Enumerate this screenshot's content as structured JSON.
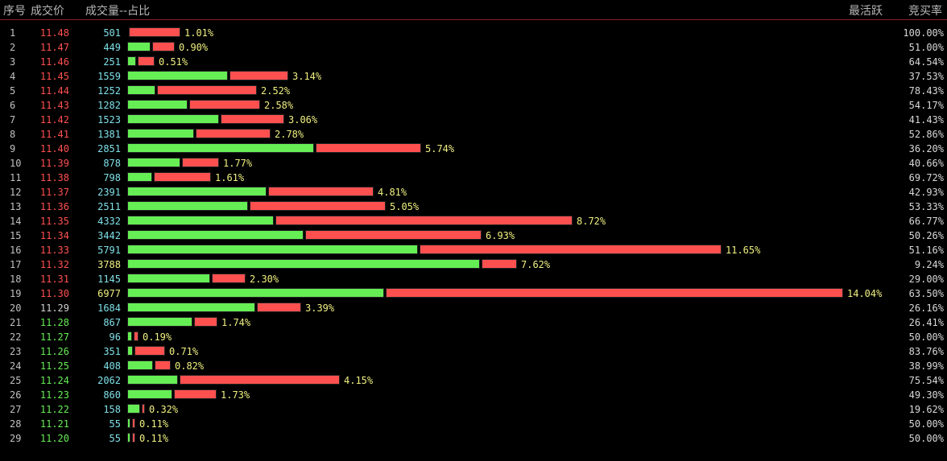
{
  "header": {
    "seq": "序号",
    "price": "成交价",
    "volume": "成交量--占比",
    "active": "最活跃",
    "rate": "竞买率"
  },
  "colors": {
    "price_up": "#ff5050",
    "price_down": "#66ee55",
    "price_flat": "#d0d0d0",
    "volume": "#7fe0e8",
    "percent": "#f0f080",
    "bar_green": "#66ee55",
    "bar_red": "#ff5050"
  },
  "rows": [
    {
      "seq": "1",
      "price": "11.48",
      "price_color": "up",
      "volume": "501",
      "volume_color": "cyan",
      "pct": "1.01%",
      "green_frac": 0.0,
      "rate": "100.00%"
    },
    {
      "seq": "2",
      "price": "11.47",
      "price_color": "up",
      "volume": "449",
      "volume_color": "cyan",
      "pct": "0.90%",
      "green_frac": 0.51,
      "rate": "51.00%"
    },
    {
      "seq": "3",
      "price": "11.46",
      "price_color": "up",
      "volume": "251",
      "volume_color": "cyan",
      "pct": "0.51%",
      "green_frac": 0.35,
      "rate": "64.54%"
    },
    {
      "seq": "4",
      "price": "11.45",
      "price_color": "up",
      "volume": "1559",
      "volume_color": "cyan",
      "pct": "3.14%",
      "green_frac": 0.63,
      "rate": "37.53%"
    },
    {
      "seq": "5",
      "price": "11.44",
      "price_color": "up",
      "volume": "1252",
      "volume_color": "cyan",
      "pct": "2.52%",
      "green_frac": 0.22,
      "rate": "78.43%"
    },
    {
      "seq": "6",
      "price": "11.43",
      "price_color": "up",
      "volume": "1282",
      "volume_color": "cyan",
      "pct": "2.58%",
      "green_frac": 0.46,
      "rate": "54.17%"
    },
    {
      "seq": "7",
      "price": "11.42",
      "price_color": "up",
      "volume": "1523",
      "volume_color": "cyan",
      "pct": "3.06%",
      "green_frac": 0.59,
      "rate": "41.43%"
    },
    {
      "seq": "8",
      "price": "11.41",
      "price_color": "up",
      "volume": "1381",
      "volume_color": "cyan",
      "pct": "2.78%",
      "green_frac": 0.47,
      "rate": "52.86%"
    },
    {
      "seq": "9",
      "price": "11.40",
      "price_color": "up",
      "volume": "2851",
      "volume_color": "cyan",
      "pct": "5.74%",
      "green_frac": 0.64,
      "rate": "36.20%"
    },
    {
      "seq": "10",
      "price": "11.39",
      "price_color": "up",
      "volume": "878",
      "volume_color": "cyan",
      "pct": "1.77%",
      "green_frac": 0.59,
      "rate": "40.66%"
    },
    {
      "seq": "11",
      "price": "11.38",
      "price_color": "up",
      "volume": "798",
      "volume_color": "cyan",
      "pct": "1.61%",
      "green_frac": 0.3,
      "rate": "69.72%"
    },
    {
      "seq": "12",
      "price": "11.37",
      "price_color": "up",
      "volume": "2391",
      "volume_color": "cyan",
      "pct": "4.81%",
      "green_frac": 0.57,
      "rate": "42.93%"
    },
    {
      "seq": "13",
      "price": "11.36",
      "price_color": "up",
      "volume": "2511",
      "volume_color": "cyan",
      "pct": "5.05%",
      "green_frac": 0.47,
      "rate": "53.33%"
    },
    {
      "seq": "14",
      "price": "11.35",
      "price_color": "up",
      "volume": "4332",
      "volume_color": "cyan",
      "pct": "8.72%",
      "green_frac": 0.33,
      "rate": "66.77%"
    },
    {
      "seq": "15",
      "price": "11.34",
      "price_color": "up",
      "volume": "3442",
      "volume_color": "cyan",
      "pct": "6.93%",
      "green_frac": 0.5,
      "rate": "50.26%"
    },
    {
      "seq": "16",
      "price": "11.33",
      "price_color": "up",
      "volume": "5791",
      "volume_color": "cyan",
      "pct": "11.65%",
      "green_frac": 0.49,
      "rate": "51.16%"
    },
    {
      "seq": "17",
      "price": "11.32",
      "price_color": "up",
      "volume": "3788",
      "volume_color": "yellow",
      "pct": "7.62%",
      "green_frac": 0.91,
      "rate": "9.24%"
    },
    {
      "seq": "18",
      "price": "11.31",
      "price_color": "up",
      "volume": "1145",
      "volume_color": "cyan",
      "pct": "2.30%",
      "green_frac": 0.71,
      "rate": "29.00%"
    },
    {
      "seq": "19",
      "price": "11.30",
      "price_color": "up",
      "volume": "6977",
      "volume_color": "yellow",
      "pct": "14.04%",
      "green_frac": 0.36,
      "rate": "63.50%"
    },
    {
      "seq": "20",
      "price": "11.29",
      "price_color": "flat",
      "volume": "1684",
      "volume_color": "cyan",
      "pct": "3.39%",
      "green_frac": 0.74,
      "rate": "26.16%"
    },
    {
      "seq": "21",
      "price": "11.28",
      "price_color": "down",
      "volume": "867",
      "volume_color": "cyan",
      "pct": "1.74%",
      "green_frac": 0.74,
      "rate": "26.41%"
    },
    {
      "seq": "22",
      "price": "11.27",
      "price_color": "down",
      "volume": "96",
      "volume_color": "cyan",
      "pct": "0.19%",
      "green_frac": 0.5,
      "rate": "50.00%"
    },
    {
      "seq": "23",
      "price": "11.26",
      "price_color": "down",
      "volume": "351",
      "volume_color": "cyan",
      "pct": "0.71%",
      "green_frac": 0.16,
      "rate": "83.76%"
    },
    {
      "seq": "24",
      "price": "11.25",
      "price_color": "down",
      "volume": "408",
      "volume_color": "cyan",
      "pct": "0.82%",
      "green_frac": 0.61,
      "rate": "38.99%"
    },
    {
      "seq": "25",
      "price": "11.24",
      "price_color": "down",
      "volume": "2062",
      "volume_color": "cyan",
      "pct": "4.15%",
      "green_frac": 0.24,
      "rate": "75.54%"
    },
    {
      "seq": "26",
      "price": "11.23",
      "price_color": "down",
      "volume": "860",
      "volume_color": "cyan",
      "pct": "1.73%",
      "green_frac": 0.51,
      "rate": "49.30%"
    },
    {
      "seq": "27",
      "price": "11.22",
      "price_color": "down",
      "volume": "158",
      "volume_color": "cyan",
      "pct": "0.32%",
      "green_frac": 0.8,
      "rate": "19.62%"
    },
    {
      "seq": "28",
      "price": "11.21",
      "price_color": "down",
      "volume": "55",
      "volume_color": "cyan",
      "pct": "0.11%",
      "green_frac": 0.5,
      "rate": "50.00%"
    },
    {
      "seq": "29",
      "price": "11.20",
      "price_color": "down",
      "volume": "55",
      "volume_color": "cyan",
      "pct": "0.11%",
      "green_frac": 0.5,
      "rate": "50.00%"
    }
  ]
}
